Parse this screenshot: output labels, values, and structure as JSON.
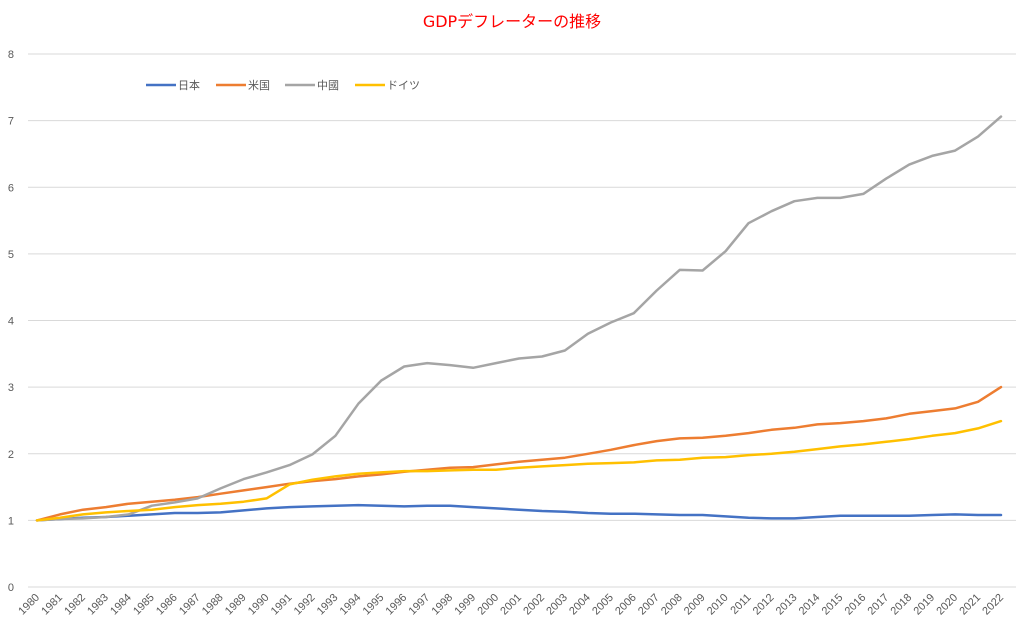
{
  "chart_data": {
    "type": "line",
    "title": "GDPデフレーターの推移",
    "title_color": "#ff0000",
    "xlabel": "",
    "ylabel": "",
    "ylim": [
      0,
      8
    ],
    "yticks": [
      "0",
      "1",
      "2",
      "3",
      "4",
      "5",
      "6",
      "7",
      "8"
    ],
    "grid": true,
    "legend_position": "top-left",
    "x": [
      "1980",
      "1981",
      "1982",
      "1983",
      "1984",
      "1985",
      "1986",
      "1987",
      "1988",
      "1989",
      "1990",
      "1991",
      "1992",
      "1993",
      "1994",
      "1995",
      "1996",
      "1997",
      "1998",
      "1999",
      "2000",
      "2001",
      "2002",
      "2003",
      "2004",
      "2005",
      "2006",
      "2007",
      "2008",
      "2009",
      "2010",
      "2011",
      "2012",
      "2013",
      "2014",
      "2015",
      "2016",
      "2017",
      "2018",
      "2019",
      "2020",
      "2021",
      "2022"
    ],
    "series": [
      {
        "name": "日本",
        "color": "#4472c4",
        "values": [
          1.0,
          1.02,
          1.04,
          1.05,
          1.07,
          1.09,
          1.11,
          1.11,
          1.12,
          1.15,
          1.18,
          1.2,
          1.21,
          1.22,
          1.23,
          1.22,
          1.21,
          1.22,
          1.22,
          1.2,
          1.18,
          1.16,
          1.14,
          1.13,
          1.11,
          1.1,
          1.1,
          1.09,
          1.08,
          1.08,
          1.06,
          1.04,
          1.03,
          1.03,
          1.05,
          1.07,
          1.07,
          1.07,
          1.07,
          1.08,
          1.09,
          1.08,
          1.08
        ]
      },
      {
        "name": "米国",
        "color": "#ed7d31",
        "values": [
          1.0,
          1.09,
          1.16,
          1.2,
          1.25,
          1.28,
          1.31,
          1.35,
          1.4,
          1.45,
          1.5,
          1.55,
          1.59,
          1.62,
          1.66,
          1.69,
          1.73,
          1.76,
          1.79,
          1.8,
          1.84,
          1.88,
          1.91,
          1.94,
          2.0,
          2.06,
          2.13,
          2.19,
          2.23,
          2.24,
          2.27,
          2.31,
          2.36,
          2.39,
          2.44,
          2.46,
          2.49,
          2.53,
          2.6,
          2.64,
          2.68,
          2.78,
          3.0
        ]
      },
      {
        "name": "中國",
        "color": "#a5a5a5",
        "values": [
          1.0,
          1.02,
          1.03,
          1.05,
          1.09,
          1.22,
          1.27,
          1.33,
          1.48,
          1.62,
          1.72,
          1.83,
          1.99,
          2.27,
          2.75,
          3.1,
          3.31,
          3.36,
          3.33,
          3.29,
          3.36,
          3.43,
          3.46,
          3.55,
          3.8,
          3.97,
          4.11,
          4.45,
          4.76,
          4.75,
          5.04,
          5.46,
          5.64,
          5.79,
          5.84,
          5.84,
          5.9,
          6.13,
          6.34,
          6.47,
          6.55,
          6.76,
          7.06
        ]
      },
      {
        "name": "ドイツ",
        "color": "#ffc000",
        "values": [
          1.0,
          1.04,
          1.09,
          1.12,
          1.14,
          1.16,
          1.2,
          1.23,
          1.25,
          1.28,
          1.33,
          1.54,
          1.61,
          1.66,
          1.7,
          1.72,
          1.74,
          1.74,
          1.75,
          1.76,
          1.76,
          1.79,
          1.81,
          1.83,
          1.85,
          1.86,
          1.87,
          1.9,
          1.91,
          1.94,
          1.95,
          1.98,
          2.0,
          2.03,
          2.07,
          2.11,
          2.14,
          2.18,
          2.22,
          2.27,
          2.31,
          2.38,
          2.49
        ]
      }
    ]
  }
}
